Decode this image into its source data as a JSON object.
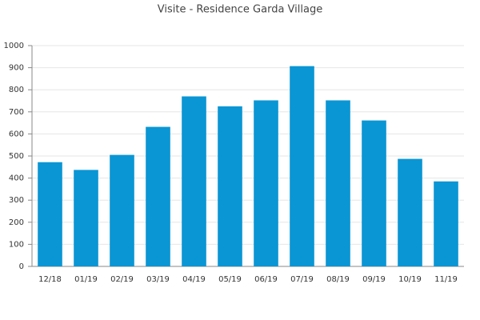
{
  "chart_data": {
    "type": "bar",
    "title": "Visite - Residence Garda Village",
    "categories": [
      "12/18",
      "01/19",
      "02/19",
      "03/19",
      "04/19",
      "05/19",
      "06/19",
      "07/19",
      "08/19",
      "09/19",
      "10/19",
      "11/19"
    ],
    "values": [
      472,
      437,
      505,
      632,
      770,
      725,
      752,
      907,
      752,
      661,
      487,
      385
    ],
    "color": "#0a96d4",
    "ylim": [
      0,
      1000
    ],
    "yticks": [
      0,
      100,
      200,
      300,
      400,
      500,
      600,
      700,
      800,
      900,
      1000
    ],
    "grid": true
  }
}
